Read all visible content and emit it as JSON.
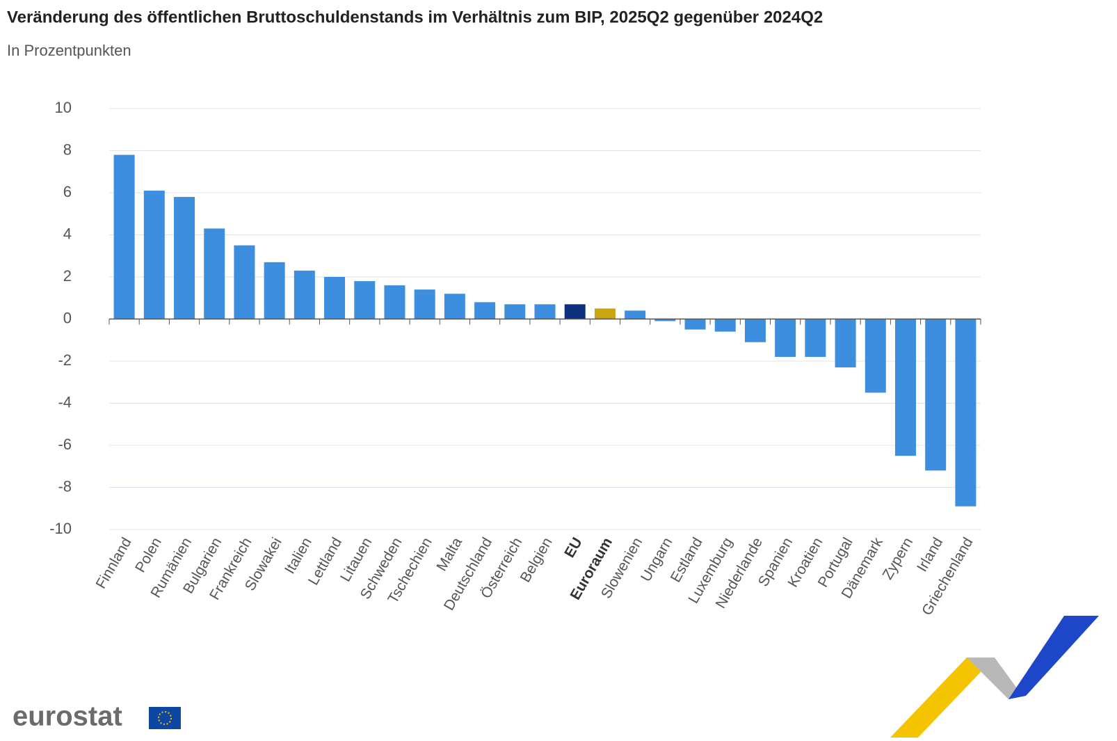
{
  "chart_data": {
    "type": "bar",
    "title": "Veränderung des öffentlichen Bruttoschuldenstands im Verhältnis zum BIP, 2025Q2 gegenüber 2024Q2",
    "subtitle": "In Prozentpunkten",
    "logo": "eurostat",
    "categories": [
      "Finnland",
      "Polen",
      "Rumänien",
      "Bulgarien",
      "Frankreich",
      "Slowakei",
      "Italien",
      "Lettland",
      "Litauen",
      "Schweden",
      "Tschechien",
      "Malta",
      "Deutschland",
      "Österreich",
      "Belgien",
      "EU",
      "Euroraum",
      "Slowenien",
      "Ungarn",
      "Estland",
      "Luxemburg",
      "Niederlande",
      "Spanien",
      "Kroatien",
      "Portugal",
      "Dänemark",
      "Zypern",
      "Irland",
      "Griechenland"
    ],
    "values": [
      7.8,
      6.1,
      5.8,
      4.3,
      3.5,
      2.7,
      2.3,
      2.0,
      1.8,
      1.6,
      1.4,
      1.2,
      0.8,
      0.7,
      0.7,
      0.7,
      0.5,
      0.4,
      -0.1,
      -0.5,
      -0.6,
      -1.1,
      -1.8,
      -1.8,
      -2.3,
      -3.5,
      -6.5,
      -7.2,
      -8.9
    ],
    "color": "#3e8ee0",
    "colors": [
      "#3e8ee0",
      "#3e8ee0",
      "#3e8ee0",
      "#3e8ee0",
      "#3e8ee0",
      "#3e8ee0",
      "#3e8ee0",
      "#3e8ee0",
      "#3e8ee0",
      "#3e8ee0",
      "#3e8ee0",
      "#3e8ee0",
      "#3e8ee0",
      "#3e8ee0",
      "#3e8ee0",
      "#0e2f7e",
      "#c9a512",
      "#3e8ee0",
      "#3e8ee0",
      "#3e8ee0",
      "#3e8ee0",
      "#3e8ee0",
      "#3e8ee0",
      "#3e8ee0",
      "#3e8ee0",
      "#3e8ee0",
      "#3e8ee0",
      "#3e8ee0",
      "#3e8ee0"
    ],
    "ylim": [
      -10,
      10
    ],
    "yticks": [
      -10,
      -8,
      -6,
      -4,
      -2,
      0,
      2,
      4,
      6,
      8,
      10
    ],
    "grid": true
  }
}
